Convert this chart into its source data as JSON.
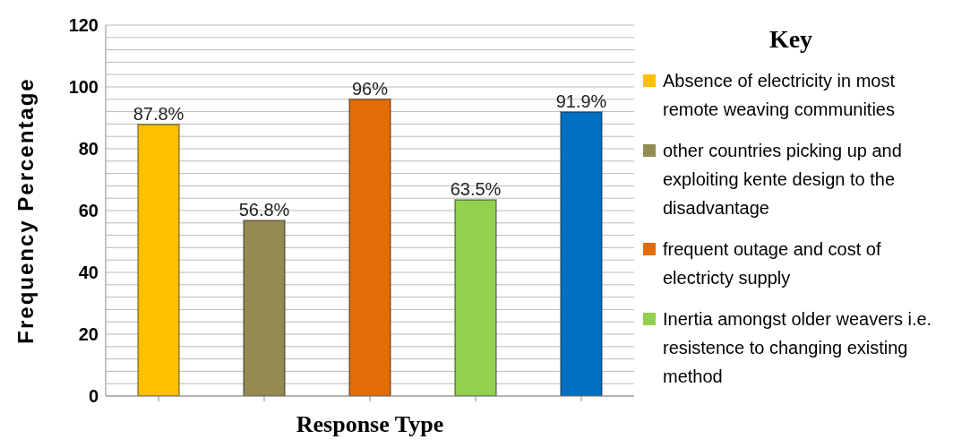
{
  "chart_data": {
    "type": "bar",
    "xlabel": "Response Type",
    "ylabel": "Frequency Percentage",
    "legend_title": "Key",
    "categories": [
      null,
      null,
      null,
      null,
      null
    ],
    "series": [
      {
        "name": "Absence of electricity in most remote weaving communities",
        "color": "#ffc000",
        "values": [
          87.8,
          null,
          null,
          null,
          null
        ],
        "value_labels": [
          "87.8%",
          null,
          null,
          null,
          null
        ]
      },
      {
        "name": "other countries picking up and exploiting kente design to the disadvantage",
        "color": "#948a54",
        "values": [
          null,
          56.8,
          null,
          null,
          null
        ],
        "value_labels": [
          null,
          "56.8%",
          null,
          null,
          null
        ]
      },
      {
        "name": "frequent outage and cost of electricty supply",
        "color": "#e36c09",
        "values": [
          null,
          null,
          96,
          null,
          null
        ],
        "value_labels": [
          null,
          null,
          "96%",
          null,
          null
        ]
      },
      {
        "name": "Inertia amongst older weavers i.e. resistence to changing existing method",
        "color": "#92d050",
        "values": [
          null,
          null,
          null,
          63.5,
          null
        ],
        "value_labels": [
          null,
          null,
          null,
          "63.5%",
          null
        ]
      },
      {
        "color": "#0070c0",
        "values": [
          null,
          null,
          null,
          null,
          91.9
        ],
        "value_labels": [
          null,
          null,
          null,
          null,
          "91.9%"
        ]
      }
    ],
    "ylim": [
      0,
      120
    ],
    "yticks": [
      0,
      {
        "value": 4,
        "label": null
      },
      {
        "value": 8,
        "label": null
      },
      {
        "value": 12,
        "label": null
      },
      {
        "value": 16,
        "label": null
      },
      20,
      {
        "value": 24,
        "label": null
      },
      {
        "value": 28,
        "label": null
      },
      {
        "value": 32,
        "label": null
      },
      {
        "value": 36,
        "label": null
      },
      40,
      {
        "value": 44,
        "label": null
      },
      {
        "value": 48,
        "label": null
      },
      {
        "value": 52,
        "label": null
      },
      {
        "value": 56,
        "label": null
      },
      60,
      {
        "value": 64,
        "label": null
      },
      {
        "value": 68,
        "label": null
      },
      {
        "value": 72,
        "label": null
      },
      {
        "value": 76,
        "label": null
      },
      80,
      {
        "value": 84,
        "label": null
      },
      {
        "value": 88,
        "label": null
      },
      {
        "value": 92,
        "label": null
      },
      {
        "value": 96,
        "label": null
      },
      100,
      {
        "value": 104,
        "label": null
      },
      {
        "value": 108,
        "label": null
      },
      {
        "value": 112,
        "label": null
      },
      {
        "value": 116,
        "label": null
      },
      120
    ],
    "grid": "y",
    "legend": "right"
  }
}
